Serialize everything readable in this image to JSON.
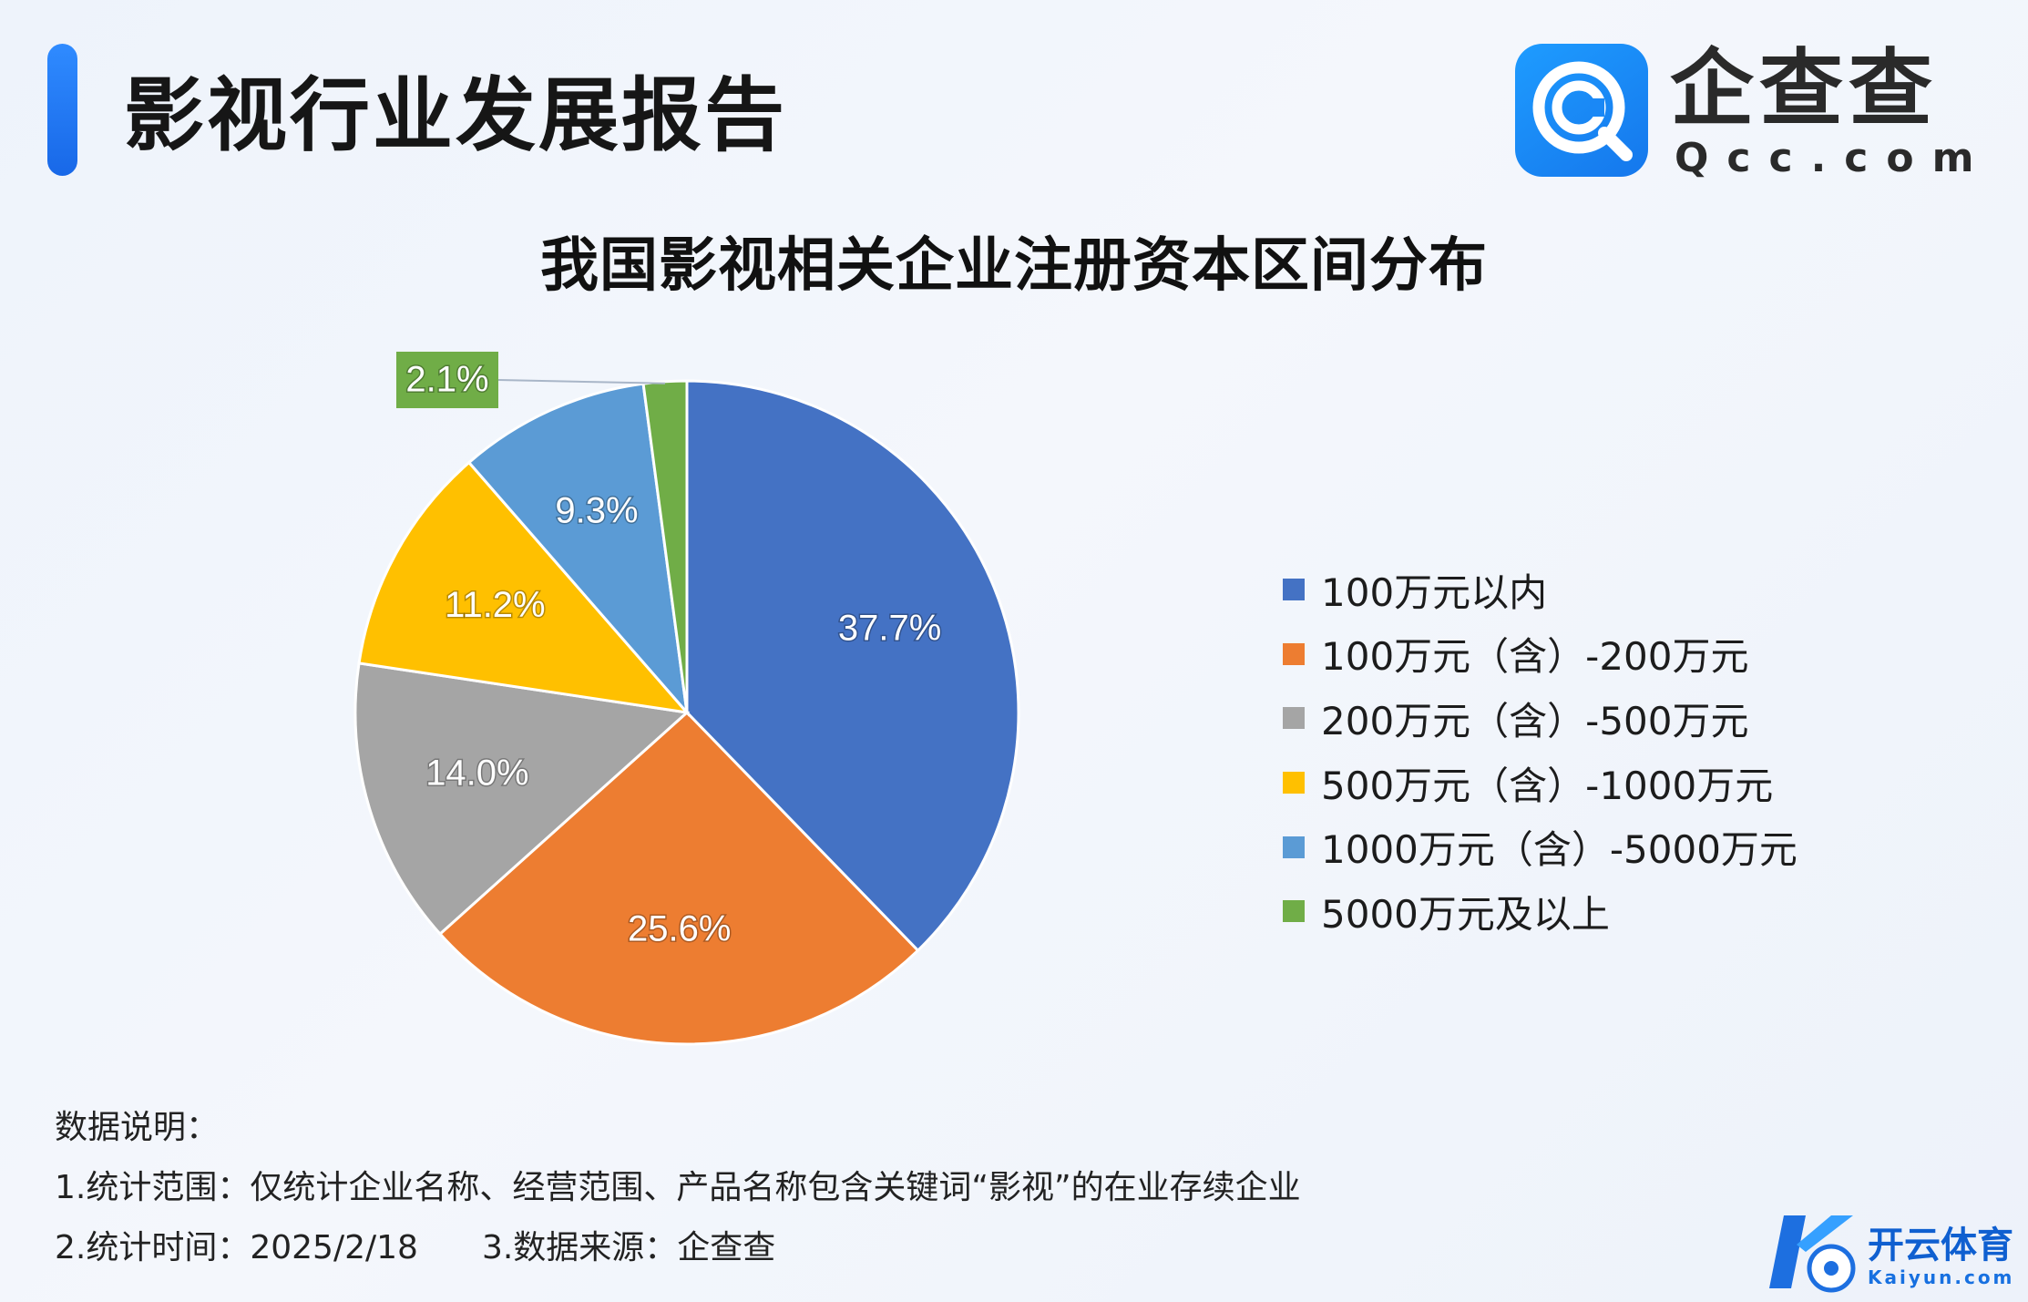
{
  "header": {
    "title": "影视行业发展报告"
  },
  "logo": {
    "name": "企查查",
    "domain": "Qcc.com",
    "icon": "qcc-magnifier-icon"
  },
  "watermark": {
    "name": "开云体育",
    "domain": "Kaiyun.com",
    "icon": "kaiyun-k-ball-icon"
  },
  "chart_data": {
    "type": "pie",
    "title": "我国影视相关企业注册资本区间分布",
    "legend_position": "right",
    "start_angle": "12 o'clock, clockwise",
    "categories": [
      "100万元以内",
      "100万元（含）-200万元",
      "200万元（含）-500万元",
      "500万元（含）-1000万元",
      "1000万元（含）-5000万元",
      "5000万元及以上"
    ],
    "values": [
      37.7,
      25.6,
      14.0,
      11.2,
      9.3,
      2.1
    ],
    "labels": [
      "37.7%",
      "25.6%",
      "14.0%",
      "11.2%",
      "9.3%",
      "2.1%"
    ],
    "colors": [
      "#4472C4",
      "#ED7D31",
      "#A5A5A5",
      "#FFC000",
      "#5B9BD5",
      "#70AD47"
    ]
  },
  "notes": {
    "heading": "数据说明：",
    "line1": "1.统计范围：仅统计企业名称、经营范围、产品名称包含关键词“影视”的在业存续企业",
    "line2a": "2.统计时间：2025/2/18",
    "line2b": "3.数据来源：企查查"
  }
}
